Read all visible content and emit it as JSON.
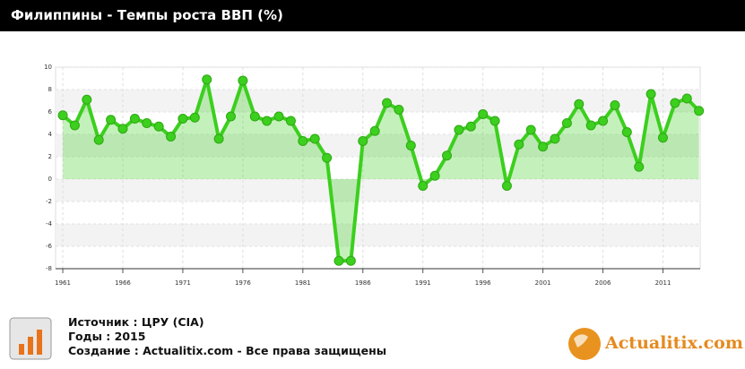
{
  "chart_data": {
    "type": "line",
    "title": "Филиппины - Темпы роста ВВП (%)",
    "x": [
      1961,
      1962,
      1963,
      1964,
      1965,
      1966,
      1967,
      1968,
      1969,
      1970,
      1971,
      1972,
      1973,
      1974,
      1975,
      1976,
      1977,
      1978,
      1979,
      1980,
      1981,
      1982,
      1983,
      1984,
      1985,
      1986,
      1987,
      1988,
      1989,
      1990,
      1991,
      1992,
      1993,
      1994,
      1995,
      1996,
      1997,
      1998,
      1999,
      2000,
      2001,
      2002,
      2003,
      2004,
      2005,
      2006,
      2007,
      2008,
      2009,
      2010,
      2011,
      2012,
      2013,
      2014
    ],
    "values": [
      5.7,
      4.8,
      7.1,
      3.5,
      5.3,
      4.5,
      5.4,
      5.0,
      4.7,
      3.8,
      5.4,
      5.5,
      8.9,
      3.6,
      5.6,
      8.8,
      5.6,
      5.2,
      5.6,
      5.2,
      3.4,
      3.6,
      1.9,
      -7.3,
      -7.3,
      3.4,
      4.3,
      6.8,
      6.2,
      3.0,
      -0.6,
      0.3,
      2.1,
      4.4,
      4.7,
      5.8,
      5.2,
      -0.6,
      3.1,
      4.4,
      2.9,
      3.6,
      5.0,
      6.7,
      4.8,
      5.2,
      6.6,
      4.2,
      1.1,
      7.6,
      3.7,
      6.8,
      7.2,
      6.1
    ],
    "color": "#3ccf1e",
    "xlim": [
      1960.4,
      2014.1
    ],
    "xticks": [
      1961,
      1966,
      1971,
      1976,
      1981,
      1986,
      1991,
      1996,
      2001,
      2006,
      2011
    ],
    "ylim": [
      -8,
      10
    ],
    "yticks": [
      -8,
      -6,
      -4,
      -2,
      0,
      2,
      4,
      6,
      8,
      10
    ],
    "grid": true
  },
  "footer": {
    "source": "Источник : ЦРУ (CIA)",
    "years": "Годы : 2015",
    "created": "Создание : Actualitix.com -  Все права защищены"
  },
  "logo": "Actualitix.com"
}
